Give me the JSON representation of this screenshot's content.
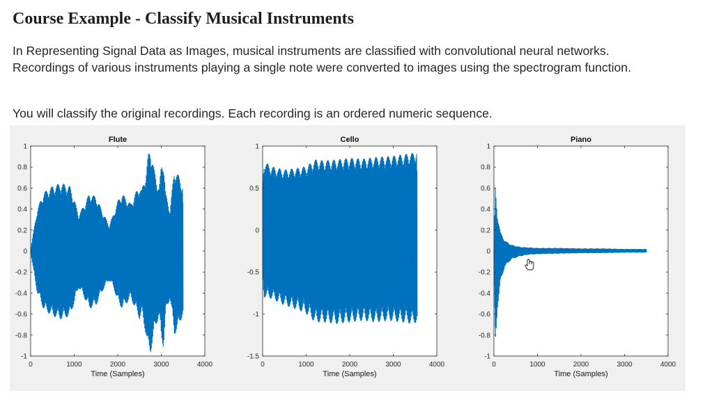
{
  "page": {
    "title": "Course Example - Classify Musical Instruments",
    "intro_line1": "In Representing Signal Data as Images, musical instruments are classified with convolutional neural networks.",
    "intro_line2": "Recordings of various instruments playing a single note were converted to images using the spectrogram function.",
    "note": "You will classify the original recordings. Each recording is an ordered numeric sequence."
  },
  "icons": {
    "cursor": "hand-cursor-icon"
  },
  "colors": {
    "signal": "#0072BD",
    "panel": "#f0f0f0",
    "axes_bg": "#ffffff",
    "axis": "#262626"
  },
  "chart_data": [
    {
      "type": "line",
      "title": "Flute",
      "xlabel": "Time (Samples)",
      "ylabel": "",
      "xlim": [
        0,
        4000
      ],
      "ylim": [
        -1,
        1
      ],
      "xticks": [
        0,
        1000,
        2000,
        3000,
        4000
      ],
      "yticks": [
        -1,
        -0.8,
        -0.6,
        -0.4,
        -0.2,
        0,
        0.2,
        0.4,
        0.6,
        0.8,
        1
      ],
      "ytick_labels": [
        "-1",
        "-0.8",
        "-0.6",
        "-0.4",
        "-0.2",
        "0",
        "0.2",
        "0.4",
        "0.6",
        "0.8",
        "1"
      ],
      "grid": false,
      "envelope": {
        "x": [
          0,
          50,
          150,
          300,
          500,
          700,
          900,
          1000,
          1100,
          1200,
          1350,
          1500,
          1650,
          1800,
          1900,
          2000,
          2100,
          2200,
          2300,
          2400,
          2500,
          2550,
          2650,
          2700,
          2750,
          2850,
          2950,
          3000,
          3050,
          3100,
          3200,
          3300,
          3400,
          3500
        ],
        "upper": [
          0.02,
          0.15,
          0.4,
          0.56,
          0.62,
          0.65,
          0.62,
          0.5,
          0.35,
          0.42,
          0.55,
          0.52,
          0.38,
          0.25,
          0.35,
          0.48,
          0.55,
          0.5,
          0.45,
          0.55,
          0.62,
          0.58,
          0.75,
          0.92,
          0.98,
          0.75,
          0.6,
          0.82,
          0.88,
          0.55,
          0.4,
          0.78,
          0.72,
          0.62
        ],
        "lower": [
          -0.02,
          -0.15,
          -0.4,
          -0.56,
          -0.62,
          -0.65,
          -0.62,
          -0.5,
          -0.35,
          -0.42,
          -0.55,
          -0.52,
          -0.38,
          -0.28,
          -0.35,
          -0.48,
          -0.55,
          -0.5,
          -0.45,
          -0.55,
          -0.65,
          -0.6,
          -0.8,
          -0.95,
          -0.98,
          -0.75,
          -0.62,
          -0.85,
          -0.92,
          -0.6,
          -0.45,
          -0.8,
          -0.72,
          -0.6
        ]
      }
    },
    {
      "type": "line",
      "title": "Cello",
      "xlabel": "Time (Samples)",
      "ylabel": "",
      "xlim": [
        0,
        4000
      ],
      "ylim": [
        -1.5,
        1
      ],
      "xticks": [
        0,
        1000,
        2000,
        3000,
        4000
      ],
      "yticks": [
        -1.5,
        -1,
        -0.5,
        0,
        0.5,
        1
      ],
      "ytick_labels": [
        "-1.5",
        "-1",
        "-0.5",
        "0",
        "0.5",
        "1"
      ],
      "grid": false,
      "envelope": {
        "x": [
          0,
          30,
          200,
          500,
          800,
          1000,
          1200,
          1400,
          1700,
          2000,
          2300,
          2600,
          2900,
          3200,
          3450,
          3550
        ],
        "upper": [
          0.6,
          0.82,
          0.76,
          0.72,
          0.74,
          0.76,
          0.84,
          0.83,
          0.84,
          0.86,
          0.85,
          0.87,
          0.88,
          0.9,
          0.92,
          0.96
        ],
        "lower": [
          -0.6,
          -0.8,
          -0.82,
          -0.9,
          -0.95,
          -1.0,
          -1.1,
          -1.1,
          -1.12,
          -1.1,
          -1.08,
          -1.1,
          -1.08,
          -1.1,
          -1.12,
          -1.1
        ]
      }
    },
    {
      "type": "line",
      "title": "Piano",
      "xlabel": "Time (Samples)",
      "ylabel": "",
      "xlim": [
        0,
        4000
      ],
      "ylim": [
        -1,
        1
      ],
      "xticks": [
        0,
        1000,
        2000,
        3000,
        4000
      ],
      "yticks": [
        -1,
        -0.8,
        -0.6,
        -0.4,
        -0.2,
        0,
        0.2,
        0.4,
        0.6,
        0.8,
        1
      ],
      "ytick_labels": [
        "-1",
        "-0.8",
        "-0.6",
        "-0.4",
        "-0.2",
        "0",
        "0.2",
        "0.4",
        "0.6",
        "0.8",
        "1"
      ],
      "grid": false,
      "envelope": {
        "x": [
          0,
          30,
          80,
          150,
          250,
          400,
          600,
          800,
          1000,
          1500,
          2000,
          2500,
          3000,
          3500
        ],
        "upper": [
          0.0,
          0.62,
          0.35,
          0.18,
          0.1,
          0.06,
          0.04,
          0.035,
          0.03,
          0.03,
          0.025,
          0.025,
          0.02,
          0.02
        ],
        "lower": [
          0.0,
          -0.95,
          -0.55,
          -0.3,
          -0.15,
          -0.08,
          -0.05,
          -0.035,
          -0.03,
          -0.025,
          -0.02,
          -0.02,
          -0.015,
          -0.015
        ]
      }
    }
  ]
}
